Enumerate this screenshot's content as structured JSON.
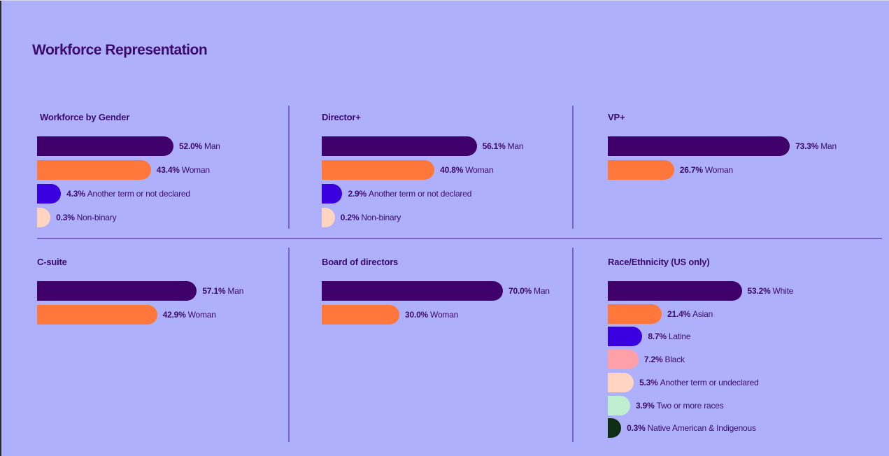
{
  "page_title": "Workforce Representation",
  "colors": {
    "background": "#afb0fc",
    "man": "#3f006b",
    "woman": "#ff773b",
    "another": "#3a00e0",
    "nonbinary": "#ffd5c2",
    "black": "#ffa0a8",
    "two_or_more": "#c0eed0",
    "native": "#0d2e14",
    "text": "#3c0a6b"
  },
  "chart_data": [
    {
      "type": "bar",
      "title": "Workforce by Gender",
      "categories": [
        "Man",
        "Woman",
        "Another term or not declared",
        "Non-binary"
      ],
      "values": [
        52.0,
        43.4,
        4.3,
        0.3
      ],
      "labels": [
        "52.0%",
        "43.4%",
        "4.3%",
        "0.3%"
      ],
      "bar_colors": [
        "#3f006b",
        "#ff773b",
        "#3a00e0",
        "#ffd5c2"
      ],
      "xlabel": "",
      "ylabel": "",
      "unit": "%"
    },
    {
      "type": "bar",
      "title": "Director+",
      "categories": [
        "Man",
        "Woman",
        "Another term or not declared",
        "Non-binary"
      ],
      "values": [
        56.1,
        40.8,
        2.9,
        0.2
      ],
      "labels": [
        "56.1%",
        "40.8%",
        "2.9%",
        "0.2%"
      ],
      "bar_colors": [
        "#3f006b",
        "#ff773b",
        "#3a00e0",
        "#ffd5c2"
      ],
      "xlabel": "",
      "ylabel": "",
      "unit": "%"
    },
    {
      "type": "bar",
      "title": "VP+",
      "categories": [
        "Man",
        "Woman"
      ],
      "values": [
        73.3,
        26.7
      ],
      "labels": [
        "73.3%",
        "26.7%"
      ],
      "bar_colors": [
        "#3f006b",
        "#ff773b"
      ],
      "xlabel": "",
      "ylabel": "",
      "unit": "%"
    },
    {
      "type": "bar",
      "title": "C-suite",
      "categories": [
        "Man",
        "Woman"
      ],
      "values": [
        57.1,
        42.9
      ],
      "labels": [
        "57.1%",
        "42.9%"
      ],
      "bar_colors": [
        "#3f006b",
        "#ff773b"
      ],
      "xlabel": "",
      "ylabel": "",
      "unit": "%"
    },
    {
      "type": "bar",
      "title": "Board of directors",
      "categories": [
        "Man",
        "Woman"
      ],
      "values": [
        70.0,
        30.0
      ],
      "labels": [
        "70.0%",
        "30.0%"
      ],
      "bar_colors": [
        "#3f006b",
        "#ff773b"
      ],
      "xlabel": "",
      "ylabel": "",
      "unit": "%"
    },
    {
      "type": "bar",
      "title": "Race/Ethnicity (US only)",
      "categories": [
        "White",
        "Asian",
        "Latine",
        "Black",
        "Another term or undeclared",
        "Two or more races",
        "Native American & Indigenous"
      ],
      "values": [
        53.2,
        21.4,
        8.7,
        7.2,
        5.3,
        3.9,
        0.3
      ],
      "labels": [
        "53.2%",
        "21.4%",
        "8.7%",
        "7.2%",
        "5.3%",
        "3.9%",
        "0.3%"
      ],
      "bar_colors": [
        "#3f006b",
        "#ff773b",
        "#3a00e0",
        "#ffa0a8",
        "#ffd5c2",
        "#c0eed0",
        "#0d2e14"
      ],
      "xlabel": "",
      "ylabel": "",
      "unit": "%"
    }
  ]
}
